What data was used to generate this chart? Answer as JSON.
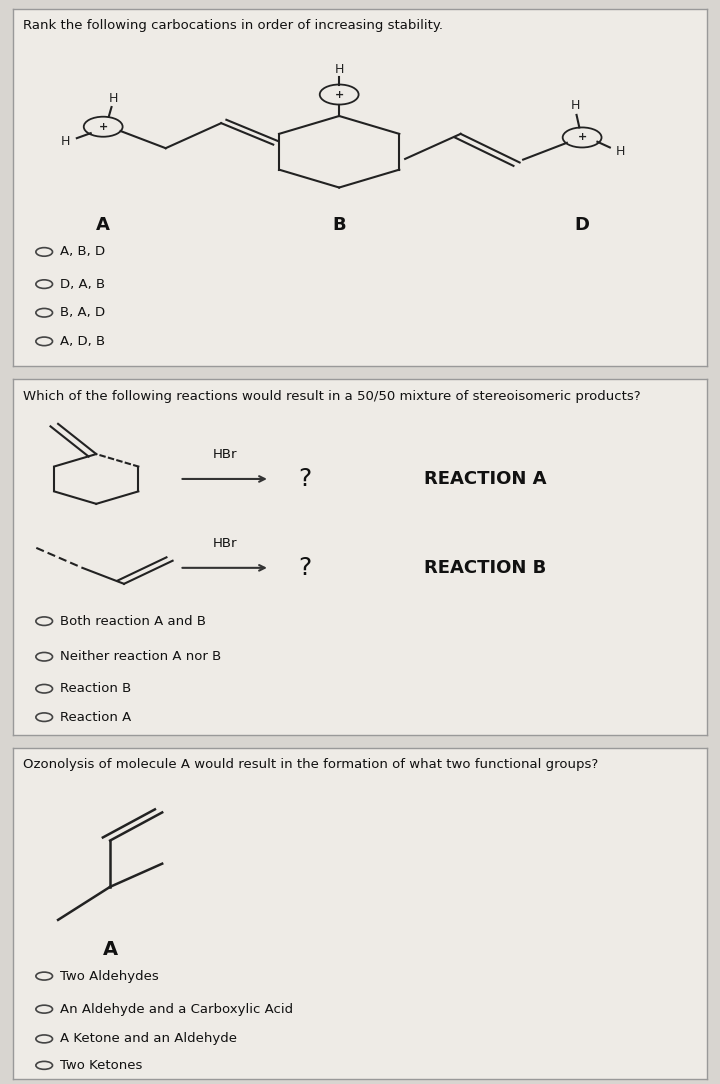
{
  "bg_color": "#d8d5d0",
  "panel_bg": "#eeebe6",
  "panel_border": "#999999",
  "text_color": "#111111",
  "question1_title": "Rank the following carbocations in order of increasing stability.",
  "question1_choices": [
    "A, B, D",
    "D, A, B",
    "B, A, D",
    "A, D, B"
  ],
  "question1_labels": [
    "A",
    "B",
    "D"
  ],
  "question2_title": "Which of the following reactions would result in a 50/50 mixture of stereoisomeric products?",
  "question2_choices": [
    "Both reaction A and B",
    "Neither reaction A nor B",
    "Reaction B",
    "Reaction A"
  ],
  "reaction_a_label": "REACTION A",
  "reaction_b_label": "REACTION B",
  "hbr_label": "HBr",
  "question_mark": "?",
  "question3_title": "Ozonolysis of molecule A would result in the formation of what two functional groups?",
  "question3_mol_label": "A",
  "question3_choices": [
    "Two Aldehydes",
    "An Aldehyde and a Carboxylic Acid",
    "A Ketone and an Aldehyde",
    "Two Ketones"
  ]
}
